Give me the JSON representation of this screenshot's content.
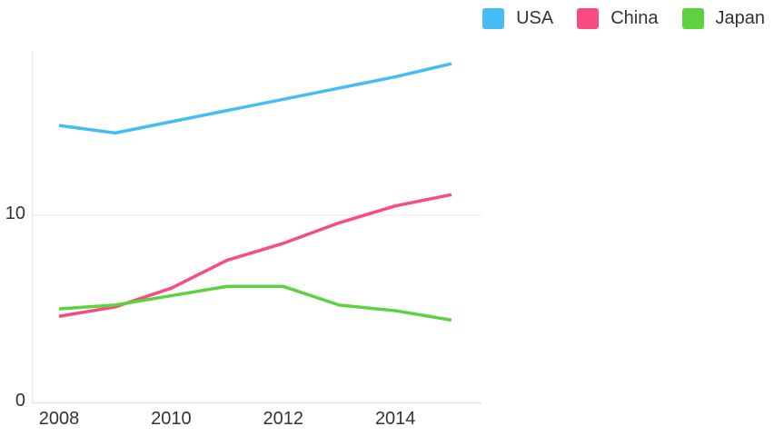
{
  "chart_data": {
    "type": "line",
    "title": "",
    "xlabel": "",
    "ylabel": "",
    "x": [
      2008,
      2009,
      2010,
      2011,
      2012,
      2013,
      2014,
      2015
    ],
    "series": [
      {
        "name": "USA",
        "color": "#43bdf2",
        "values": [
          14.8,
          14.4,
          15.0,
          15.6,
          16.2,
          16.8,
          17.4,
          18.1
        ]
      },
      {
        "name": "China",
        "color": "#fa4b80",
        "values": [
          4.6,
          5.1,
          6.1,
          7.6,
          8.5,
          9.6,
          10.5,
          11.1
        ]
      },
      {
        "name": "Japan",
        "color": "#5cd23f",
        "values": [
          5.0,
          5.2,
          5.7,
          6.2,
          6.2,
          5.2,
          4.9,
          4.4
        ]
      }
    ],
    "x_ticks": [
      2008,
      2010,
      2012,
      2014
    ],
    "x_tick_labels": [
      "2008",
      "2010",
      "2012",
      "2014"
    ],
    "y_ticks": [
      0,
      10
    ],
    "y_tick_labels": [
      "0",
      "10"
    ],
    "ylim": [
      0,
      18.8
    ],
    "grid": "horizontal",
    "legend_position": "top-right",
    "axis_color": "#e6e6e6",
    "grid_color": "#efefef",
    "tick_text_color": "#333333"
  }
}
